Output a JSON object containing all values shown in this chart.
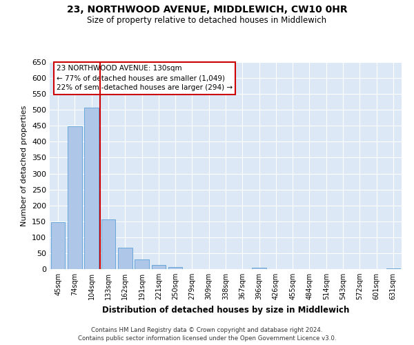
{
  "title1": "23, NORTHWOOD AVENUE, MIDDLEWICH, CW10 0HR",
  "title2": "Size of property relative to detached houses in Middlewich",
  "xlabel": "Distribution of detached houses by size in Middlewich",
  "ylabel": "Number of detached properties",
  "categories": [
    "45sqm",
    "74sqm",
    "104sqm",
    "133sqm",
    "162sqm",
    "191sqm",
    "221sqm",
    "250sqm",
    "279sqm",
    "309sqm",
    "338sqm",
    "367sqm",
    "396sqm",
    "426sqm",
    "455sqm",
    "484sqm",
    "514sqm",
    "543sqm",
    "572sqm",
    "601sqm",
    "631sqm"
  ],
  "values": [
    147,
    449,
    507,
    157,
    67,
    31,
    13,
    7,
    0,
    0,
    0,
    0,
    5,
    0,
    0,
    0,
    0,
    0,
    0,
    0,
    3
  ],
  "bar_color": "#aec6e8",
  "bar_edgecolor": "#5a9fd4",
  "bg_color": "#dce8f5",
  "grid_color": "#ffffff",
  "vline_color": "#cc0000",
  "annotation_title": "23 NORTHWOOD AVENUE: 130sqm",
  "annotation_line1": "← 77% of detached houses are smaller (1,049)",
  "annotation_line2": "22% of semi-detached houses are larger (294) →",
  "annotation_box_color": "#cc0000",
  "footer1": "Contains HM Land Registry data © Crown copyright and database right 2024.",
  "footer2": "Contains public sector information licensed under the Open Government Licence v3.0.",
  "ylim": [
    0,
    650
  ],
  "yticks": [
    0,
    50,
    100,
    150,
    200,
    250,
    300,
    350,
    400,
    450,
    500,
    550,
    600,
    650
  ]
}
